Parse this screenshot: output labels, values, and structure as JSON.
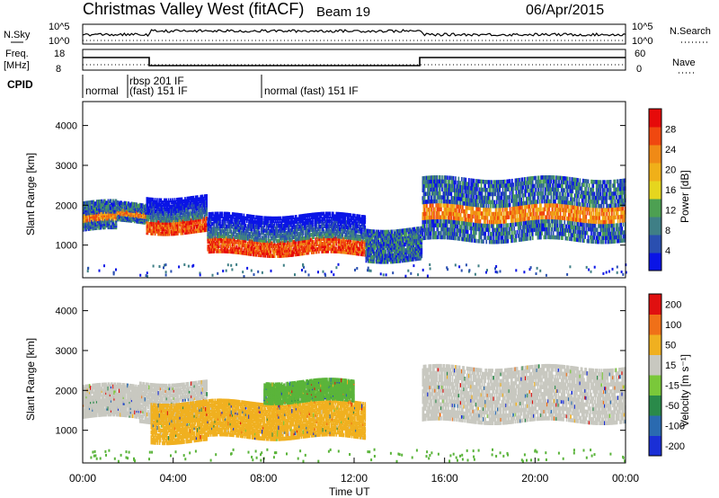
{
  "header": {
    "station": "Christmas Valley West (fitACF)",
    "beam": "Beam 19",
    "date": "06/Apr/2015"
  },
  "status_panels": {
    "nsky_label": "N.Sky",
    "nsearch_label": "N.Search",
    "nsky_ticks": [
      "10^5",
      "10^0"
    ],
    "nsearch_ticks": [
      "10^5",
      "10^0"
    ],
    "freq_label": "Freq.",
    "freq_unit": "[MHz]",
    "freq_ticks": [
      "18",
      "8"
    ],
    "nave_label": "Nave",
    "nave_ticks": [
      "60",
      "0"
    ],
    "cpid_label": "CPID",
    "cpid_segments": [
      {
        "label": "normal",
        "start_h": 0.0
      },
      {
        "label": "rbsp 201 IF",
        "start_h": 2.1
      },
      {
        "label": "(fast) 151 IF",
        "start_h": 2.1
      },
      {
        "label": "normal (fast) 151 IF",
        "start_h": 8.0
      }
    ]
  },
  "chart_data": [
    {
      "type": "heatmap",
      "name": "power",
      "ylabel": "Slant Range [km]",
      "xlabel": "",
      "ylim": [
        180,
        4600
      ],
      "xlim": [
        0,
        24
      ],
      "yticks": [
        "1000",
        "2000",
        "3000",
        "4000"
      ],
      "colorbar": {
        "title": "Power [dB]",
        "ticks": [
          "4",
          "8",
          "12",
          "16",
          "20",
          "24",
          "28"
        ],
        "colors": [
          "#0a14e6",
          "#2a4fb0",
          "#3f7f86",
          "#4da052",
          "#e6d61e",
          "#f0b019",
          "#f08a16",
          "#f04810",
          "#e60a0a"
        ]
      },
      "bands": [
        {
          "t": [
            0.0,
            1.5
          ],
          "r": [
            1350,
            2050
          ],
          "level": "mid"
        },
        {
          "t": [
            1.5,
            2.8
          ],
          "r": [
            1550,
            2000
          ],
          "level": "mid"
        },
        {
          "t": [
            2.8,
            5.5
          ],
          "r": [
            1300,
            2200
          ],
          "level": "high"
        },
        {
          "t": [
            5.5,
            12.5
          ],
          "r": [
            750,
            1750
          ],
          "level": "high"
        },
        {
          "t": [
            12.5,
            15.0
          ],
          "r": [
            600,
            1400
          ],
          "level": "low"
        },
        {
          "t": [
            15.0,
            24.0
          ],
          "r": [
            1100,
            2700
          ],
          "level": "mid"
        }
      ]
    },
    {
      "type": "heatmap",
      "name": "velocity",
      "ylabel": "Slant Range [km]",
      "xlabel": "Time UT",
      "ylim": [
        180,
        4600
      ],
      "xlim": [
        0,
        24
      ],
      "yticks": [
        "1000",
        "2000",
        "3000",
        "4000"
      ],
      "xticks": [
        "00:00",
        "04:00",
        "08:00",
        "12:00",
        "16:00",
        "20:00",
        "00:00"
      ],
      "colorbar": {
        "title": "Velocity [m s⁻¹]",
        "ticks": [
          "200",
          "100",
          "50",
          "15",
          "-15",
          "-50",
          "-100",
          "-200"
        ],
        "colors": [
          "#1a2fd6",
          "#2a6ab0",
          "#2a8a4a",
          "#7ac83a",
          "#c8c8c0",
          "#f0b020",
          "#f07018",
          "#e01010"
        ]
      },
      "bands": [
        {
          "t": [
            0.0,
            2.5
          ],
          "r": [
            1300,
            2100
          ],
          "color": "gray"
        },
        {
          "t": [
            2.5,
            5.5
          ],
          "r": [
            1200,
            2200
          ],
          "color": "gray"
        },
        {
          "t": [
            3.0,
            5.5
          ],
          "r": [
            700,
            1700
          ],
          "color": "orange"
        },
        {
          "t": [
            5.5,
            12.5
          ],
          "r": [
            800,
            1700
          ],
          "color": "orange"
        },
        {
          "t": [
            8.0,
            12.0
          ],
          "r": [
            1700,
            2200
          ],
          "color": "green"
        },
        {
          "t": [
            15.0,
            24.0
          ],
          "r": [
            1200,
            2600
          ],
          "color": "gray"
        }
      ]
    }
  ]
}
